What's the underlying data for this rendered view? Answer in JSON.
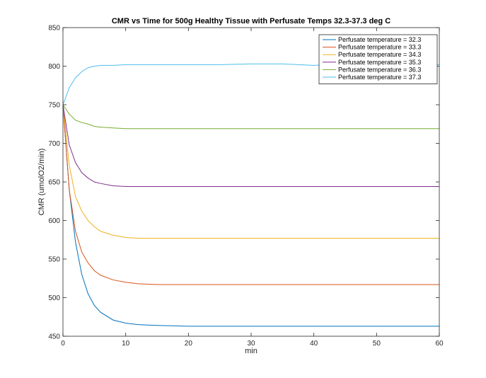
{
  "chart_data": {
    "type": "line",
    "title": "CMR vs Time for 500g Healthy Tissue with Perfusate Temps 32.3-37.3 deg C",
    "xlabel": "min",
    "ylabel": "CMR (umolO2/min)",
    "xlim": [
      0,
      60
    ],
    "ylim": [
      450,
      850
    ],
    "xticks": [
      0,
      10,
      20,
      30,
      40,
      50,
      60
    ],
    "yticks": [
      450,
      500,
      550,
      600,
      650,
      700,
      750,
      800,
      850
    ],
    "grid": false,
    "legend_position": "top-right",
    "x": [
      0,
      1,
      2,
      3,
      4,
      5,
      6,
      8,
      10,
      12,
      15,
      20,
      25,
      30,
      35,
      40,
      45,
      50,
      55,
      60
    ],
    "series": [
      {
        "name": "Perfusate temperature = 32.3",
        "color": "#0072BD",
        "values": [
          750,
          640,
          572,
          530,
          505,
          490,
          481,
          471,
          467,
          465,
          464,
          463,
          463,
          463,
          463,
          463,
          463,
          463,
          463,
          463
        ]
      },
      {
        "name": "Perfusate temperature = 33.3",
        "color": "#D95319",
        "values": [
          750,
          640,
          586,
          559,
          545,
          535,
          529,
          523,
          520,
          518,
          517,
          517,
          517,
          517,
          517,
          517,
          517,
          517,
          517,
          517
        ]
      },
      {
        "name": "Perfusate temperature = 34.3",
        "color": "#EDB120",
        "values": [
          750,
          672,
          631,
          612,
          600,
          592,
          586,
          581,
          578,
          577,
          577,
          577,
          577,
          577,
          577,
          577,
          577,
          577,
          577,
          577
        ]
      },
      {
        "name": "Perfusate temperature = 35.3",
        "color": "#7E2F8E",
        "values": [
          750,
          698,
          675,
          662,
          655,
          650,
          648,
          645,
          644,
          644,
          644,
          644,
          644,
          644,
          644,
          644,
          644,
          644,
          644,
          644
        ]
      },
      {
        "name": "Perfusate temperature = 36.3",
        "color": "#77AC30",
        "values": [
          750,
          738,
          730,
          727,
          725,
          722,
          721,
          720,
          719,
          719,
          719,
          719,
          719,
          719,
          719,
          719,
          719,
          719,
          719,
          719
        ]
      },
      {
        "name": "Perfusate temperature = 37.3",
        "color": "#4DBEEE",
        "values": [
          750,
          772,
          785,
          793,
          798,
          800,
          801,
          801,
          802,
          802,
          802,
          802,
          802,
          803,
          803,
          801,
          803,
          802,
          802,
          802
        ]
      }
    ]
  }
}
